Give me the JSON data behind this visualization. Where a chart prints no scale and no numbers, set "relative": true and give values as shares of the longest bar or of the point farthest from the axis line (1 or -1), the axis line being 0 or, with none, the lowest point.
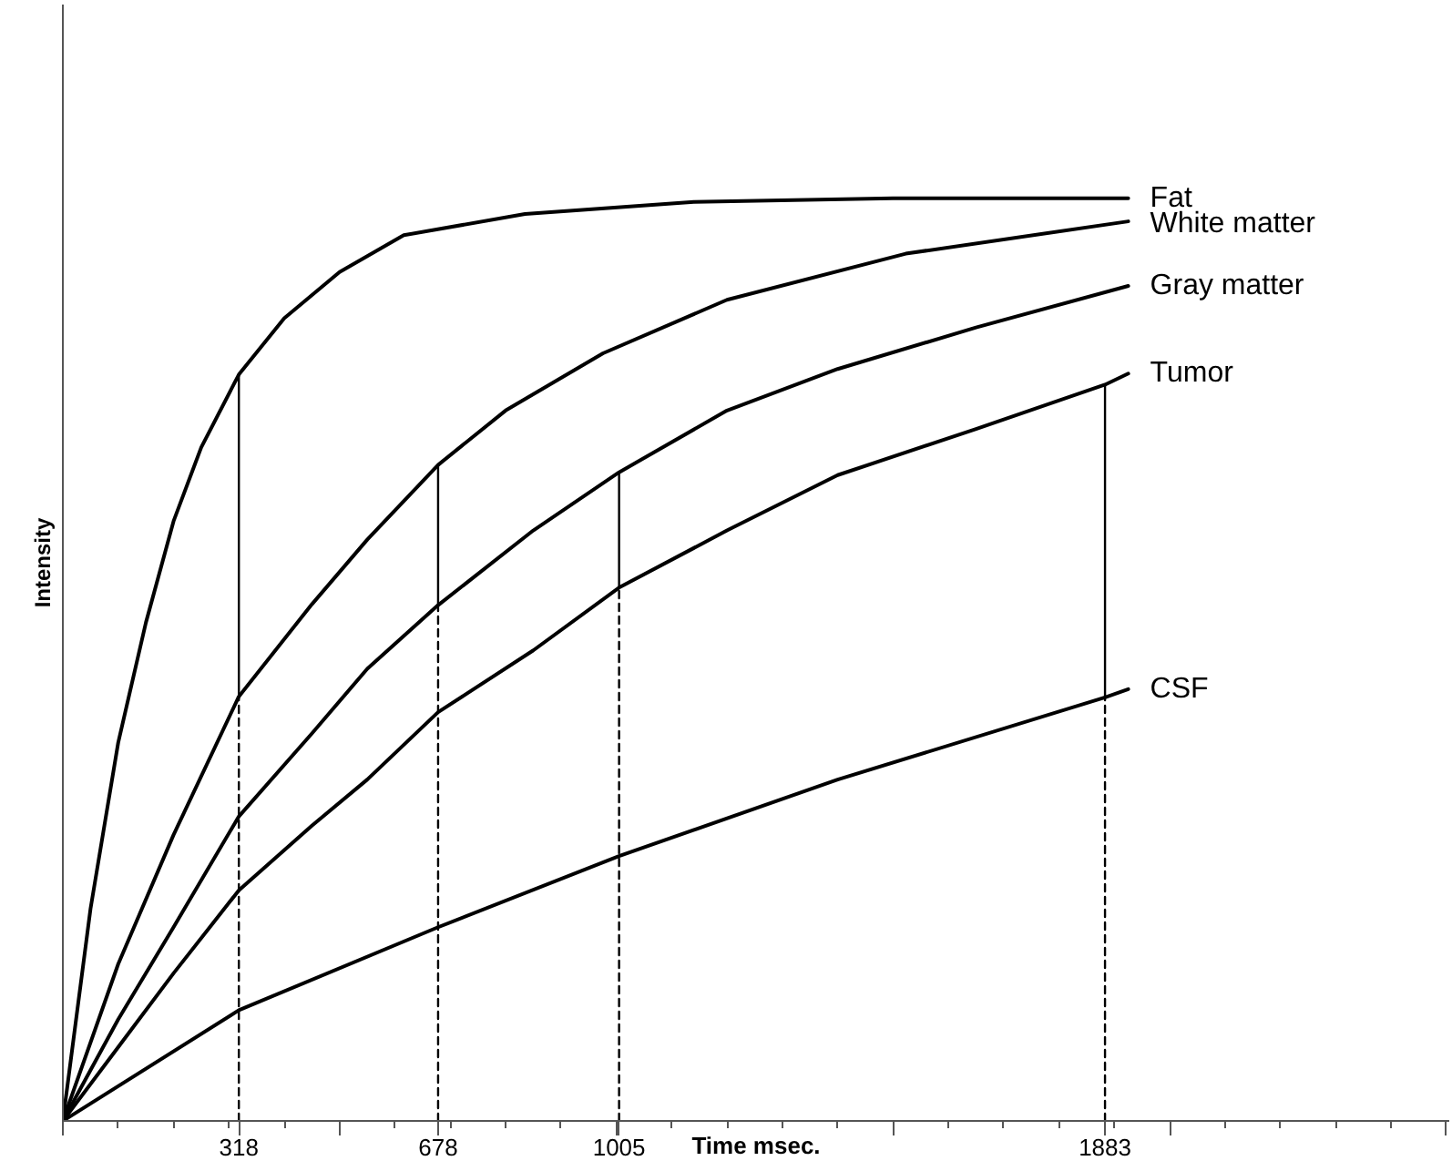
{
  "chart_data": {
    "type": "line",
    "relative": true,
    "xlabel": "Time msec.",
    "ylabel": "Intensity",
    "xlim": [
      0,
      2505
    ],
    "xticks": [
      {
        "value": 0,
        "label": null
      },
      {
        "value": 100,
        "label": null
      },
      {
        "value": 200,
        "label": null
      },
      318,
      {
        "value": 300,
        "label": null
      },
      {
        "value": 400,
        "label": null
      },
      {
        "value": 500,
        "label": null
      },
      {
        "value": 600,
        "label": null
      },
      678,
      {
        "value": 700,
        "label": null
      },
      {
        "value": 800,
        "label": null
      },
      {
        "value": 900,
        "label": null
      },
      {
        "value": 1000,
        "label": null
      },
      1005,
      {
        "value": 1100,
        "label": null
      },
      {
        "value": 1200,
        "label": null
      },
      {
        "value": 1300,
        "label": null
      },
      {
        "value": 1400,
        "label": null
      },
      {
        "value": 1500,
        "label": null
      },
      {
        "value": 1600,
        "label": null
      },
      {
        "value": 1700,
        "label": null
      },
      {
        "value": 1800,
        "label": null
      },
      1883,
      {
        "value": 1900,
        "label": null
      },
      {
        "value": 2000,
        "label": null
      },
      {
        "value": 2100,
        "label": null
      },
      {
        "value": 2200,
        "label": null
      },
      {
        "value": 2300,
        "label": null
      },
      {
        "value": 2400,
        "label": null
      },
      {
        "value": 2500,
        "label": null
      }
    ],
    "grid": false,
    "marker": "none",
    "line_style": "solid",
    "series": [
      {
        "name": "Fat",
        "color": "#000000",
        "x": [
          0,
          50,
          100,
          150,
          200,
          250,
          318,
          400,
          500,
          616,
          835,
          1140,
          1500,
          1925
        ],
        "values": [
          0,
          0.23,
          0.41,
          0.54,
          0.65,
          0.73,
          0.809,
          0.87,
          0.92,
          0.96,
          0.983,
          0.996,
          1.0,
          1.0
        ]
      },
      {
        "name": "White matter",
        "color": "#000000",
        "x": [
          0,
          100,
          200,
          318,
          450,
          550,
          678,
          800,
          976,
          1200,
          1523,
          1925
        ],
        "values": [
          0,
          0.17,
          0.31,
          0.46,
          0.56,
          0.63,
          0.711,
          0.77,
          0.832,
          0.89,
          0.94,
          0.975
        ]
      },
      {
        "name": "Gray matter",
        "color": "#000000",
        "x": [
          0,
          100,
          200,
          318,
          450,
          550,
          678,
          850,
          1005,
          1200,
          1400,
          1650,
          1925
        ],
        "values": [
          0,
          0.11,
          0.21,
          0.33,
          0.42,
          0.49,
          0.559,
          0.64,
          0.703,
          0.77,
          0.815,
          0.86,
          0.905
        ]
      },
      {
        "name": "Tumor",
        "color": "#000000",
        "x": [
          0,
          100,
          200,
          318,
          450,
          550,
          678,
          850,
          1005,
          1200,
          1400,
          1650,
          1883,
          1925
        ],
        "values": [
          0,
          0.08,
          0.16,
          0.25,
          0.32,
          0.37,
          0.443,
          0.51,
          0.578,
          0.64,
          0.7,
          0.75,
          0.798,
          0.81
        ]
      },
      {
        "name": "CSF",
        "color": "#000000",
        "x": [
          0,
          318,
          678,
          1005,
          1400,
          1883,
          1925
        ],
        "values": [
          0,
          0.12,
          0.21,
          0.287,
          0.37,
          0.459,
          0.468
        ]
      },
      {
        "color": "#000000",
        "x": [
          318,
          318
        ],
        "values": [
          0.46,
          0.809
        ]
      },
      {
        "color": "#000000",
        "x": [
          318,
          318
        ],
        "values": [
          0,
          0.46
        ],
        "line_style": "dashed"
      },
      {
        "color": "#000000",
        "x": [
          678,
          678
        ],
        "values": [
          0.559,
          0.711
        ]
      },
      {
        "color": "#000000",
        "x": [
          678,
          678
        ],
        "values": [
          0,
          0.559
        ],
        "line_style": "dashed"
      },
      {
        "color": "#000000",
        "x": [
          1005,
          1005
        ],
        "values": [
          0.578,
          0.703
        ]
      },
      {
        "color": "#000000",
        "x": [
          1005,
          1005
        ],
        "values": [
          0,
          0.578
        ],
        "line_style": "dashed"
      },
      {
        "color": "#000000",
        "x": [
          1883,
          1883
        ],
        "values": [
          0.459,
          0.798
        ]
      },
      {
        "color": "#000000",
        "x": [
          1883,
          1883
        ],
        "values": [
          0,
          0.459
        ],
        "line_style": "dashed"
      }
    ]
  }
}
